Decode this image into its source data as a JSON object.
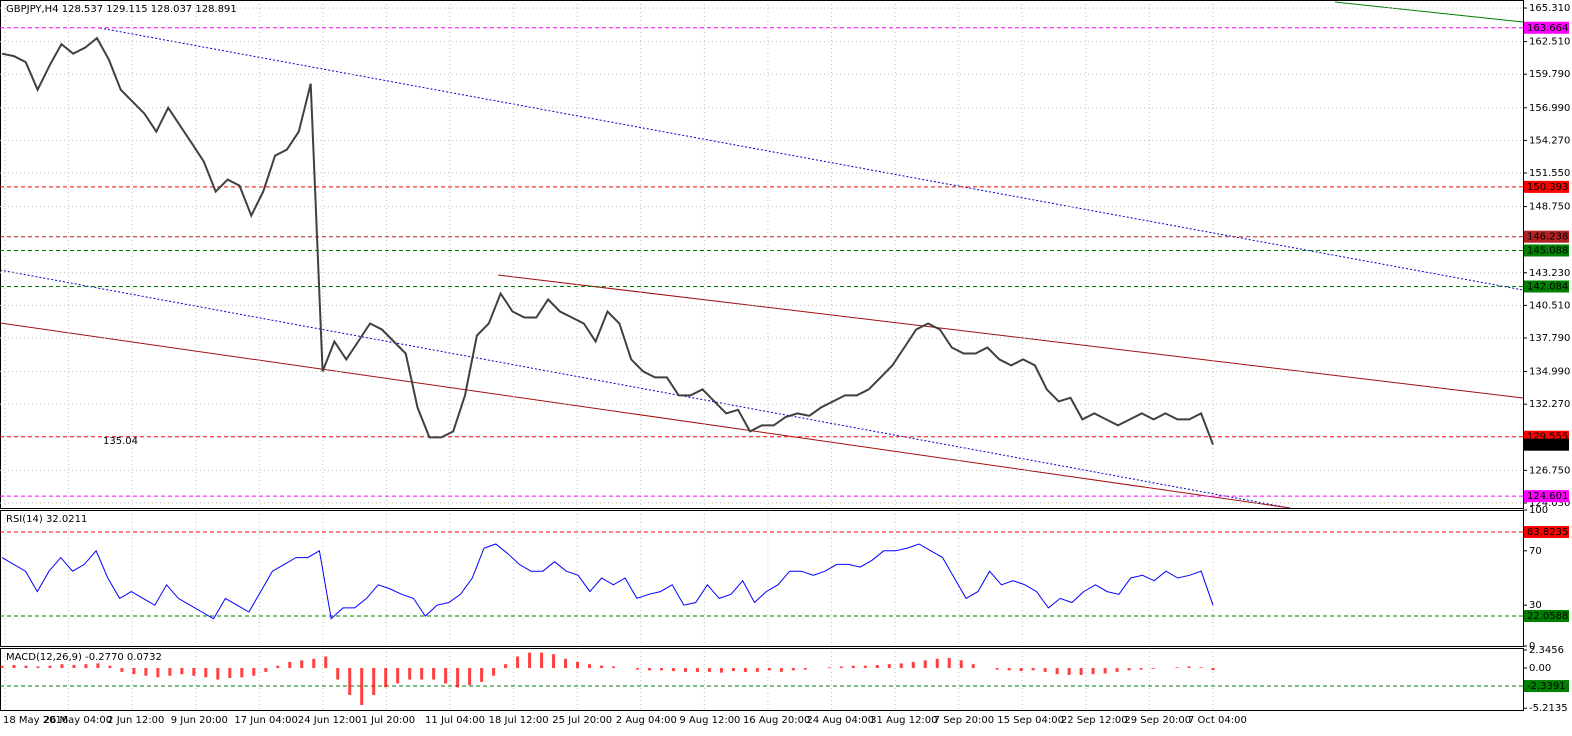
{
  "chart_data": [
    {
      "type": "line",
      "title": "GBPJPY,H4  128.537 129.115 128.037 128.891",
      "color": "#404040",
      "ylim": [
        123.61,
        165.98
      ],
      "yticks": [
        {
          "value": 165.31,
          "label": "165.310"
        },
        {
          "value": 162.51,
          "label": "162.510"
        },
        {
          "value": 159.79,
          "label": "159.790"
        },
        {
          "value": 156.99,
          "label": "156.990"
        },
        {
          "value": 154.27,
          "label": "154.270"
        },
        {
          "value": 151.55,
          "label": "151.550"
        },
        {
          "value": 148.75,
          "label": "148.750"
        },
        {
          "value": 143.23,
          "label": "143.230"
        },
        {
          "value": 140.51,
          "label": "140.510"
        },
        {
          "value": 137.79,
          "label": "137.790"
        },
        {
          "value": 134.99,
          "label": "134.990"
        },
        {
          "value": 132.27,
          "label": "132.270"
        },
        {
          "value": 126.75,
          "label": "126.750"
        },
        {
          "value": 124.03,
          "label": "124.030"
        }
      ],
      "levels": [
        {
          "value": 163.664,
          "color": "#ff00ff"
        },
        {
          "value": 150.393,
          "color": "#ff0000"
        },
        {
          "value": 146.238,
          "color": "#b22222"
        },
        {
          "value": 145.088,
          "color": "#008000"
        },
        {
          "value": 142.084,
          "color": "#008000"
        },
        {
          "value": 129.555,
          "color": "#ff0000"
        },
        {
          "value": 128.891,
          "color": "#000000"
        },
        {
          "value": 124.601,
          "color": "#ff00ff"
        }
      ],
      "annotation": "135.04",
      "x_labels": [
        "18 May 2016",
        "26 May 04:00",
        "2 Jun 12:00",
        "9 Jun 20:00",
        "17 Jun 04:00",
        "24 Jun 12:00",
        "1 Jul 20:00",
        "11 Jul 04:00",
        "18 Jul 12:00",
        "25 Jul 20:00",
        "2 Aug 04:00",
        "9 Aug 12:00",
        "16 Aug 20:00",
        "24 Aug 04:00",
        "31 Aug 12:00",
        "7 Sep 20:00",
        "15 Sep 04:00",
        "22 Sep 12:00",
        "29 Sep 20:00",
        "7 Oct 04:00"
      ],
      "values": [
        161.5,
        161.3,
        160.8,
        158.5,
        160.5,
        162.3,
        161.5,
        162,
        162.8,
        161,
        158.5,
        157.5,
        156.5,
        155,
        157,
        155.5,
        154,
        152.5,
        150,
        151,
        150.5,
        148,
        150,
        153,
        153.5,
        155,
        159,
        135,
        137.5,
        136,
        137.5,
        139,
        138.5,
        137.5,
        136.5,
        132,
        129.5,
        129.5,
        130,
        133,
        138,
        139,
        141.5,
        140,
        139.5,
        139.5,
        141,
        140,
        139.5,
        139,
        137.5,
        140,
        139,
        136,
        135,
        134.5,
        134.5,
        133,
        133,
        133.5,
        132.5,
        131.5,
        131.8,
        130,
        130.5,
        130.5,
        131.2,
        131.5,
        131.3,
        132,
        132.5,
        133,
        133,
        133.5,
        134.5,
        135.5,
        137,
        138.5,
        139,
        138.5,
        137,
        136.5,
        136.5,
        137,
        136,
        135.5,
        136,
        135.5,
        133.5,
        132.5,
        132.8,
        131,
        131.5,
        131,
        130.5,
        131,
        131.5,
        131,
        131.5,
        131,
        131,
        131.5,
        128.9
      ]
    },
    {
      "type": "line",
      "title": "RSI(14) 32.0211",
      "color": "#0000ff",
      "ylim": [
        0,
        100
      ],
      "yticks": [
        100,
        70,
        30,
        0
      ],
      "levels": [
        {
          "value": 83.8235,
          "color": "#ff0000"
        },
        {
          "value": 22.0588,
          "color": "#008000"
        }
      ],
      "values": [
        65,
        60,
        55,
        40,
        55,
        65,
        55,
        60,
        70,
        50,
        35,
        40,
        35,
        30,
        45,
        35,
        30,
        25,
        20,
        35,
        30,
        25,
        40,
        55,
        60,
        65,
        65,
        70,
        20,
        28,
        28,
        35,
        45,
        42,
        38,
        35,
        22,
        30,
        32,
        38,
        50,
        72,
        75,
        68,
        60,
        55,
        55,
        62,
        55,
        52,
        40,
        50,
        45,
        50,
        35,
        38,
        40,
        45,
        30,
        32,
        45,
        35,
        38,
        48,
        32,
        40,
        45,
        55,
        55,
        52,
        55,
        60,
        60,
        58,
        63,
        70,
        70,
        72,
        75,
        70,
        65,
        50,
        35,
        40,
        55,
        45,
        48,
        45,
        40,
        28,
        35,
        32,
        40,
        45,
        40,
        38,
        50,
        52,
        48,
        55,
        50,
        52,
        55,
        30
      ]
    },
    {
      "type": "bar",
      "title": "MACD(12,26,9) -0.2770 0.0732",
      "color": "#ff0000",
      "ylim": [
        -5.45,
        2.6
      ],
      "yticks": [
        2.3456,
        {
          "value": 0,
          "label": "0.00"
        },
        -5.2135
      ],
      "levels": [
        {
          "value": -2.3391,
          "color": "#008000"
        }
      ],
      "values": [
        0.3,
        0.4,
        0.3,
        0.2,
        0.3,
        0.5,
        0.4,
        0.5,
        0.6,
        0.3,
        -0.5,
        -0.8,
        -1,
        -1.2,
        -1,
        -0.8,
        -1,
        -1.2,
        -1.5,
        -1.3,
        -1.2,
        -1,
        -0.5,
        0.3,
        0.8,
        1,
        1.2,
        1.5,
        -1.5,
        -3.5,
        -4.8,
        -3.5,
        -2.5,
        -2,
        -1.5,
        -1.5,
        -1.5,
        -2,
        -2.5,
        -2.2,
        -1.8,
        -1,
        0.5,
        1.5,
        2,
        2,
        1.8,
        1.2,
        0.8,
        0.5,
        0.3,
        0.2,
        0,
        -0.2,
        -0.3,
        -0.3,
        -0.4,
        -0.5,
        -0.5,
        -0.5,
        -0.6,
        -0.4,
        -0.5,
        -0.5,
        -0.3,
        -0.5,
        -0.3,
        -0.2,
        0,
        0.1,
        0.2,
        0.3,
        0.3,
        0.4,
        0.5,
        0.6,
        0.8,
        1,
        1.2,
        1.3,
        1,
        0.5,
        0,
        -0.2,
        -0.3,
        -0.4,
        -0.3,
        -0.5,
        -0.8,
        -0.9,
        -0.9,
        -0.8,
        -0.7,
        -0.5,
        -0.3,
        -0.2,
        -0.1,
        0,
        0.1,
        0.2,
        0.1,
        -0.28
      ]
    }
  ]
}
